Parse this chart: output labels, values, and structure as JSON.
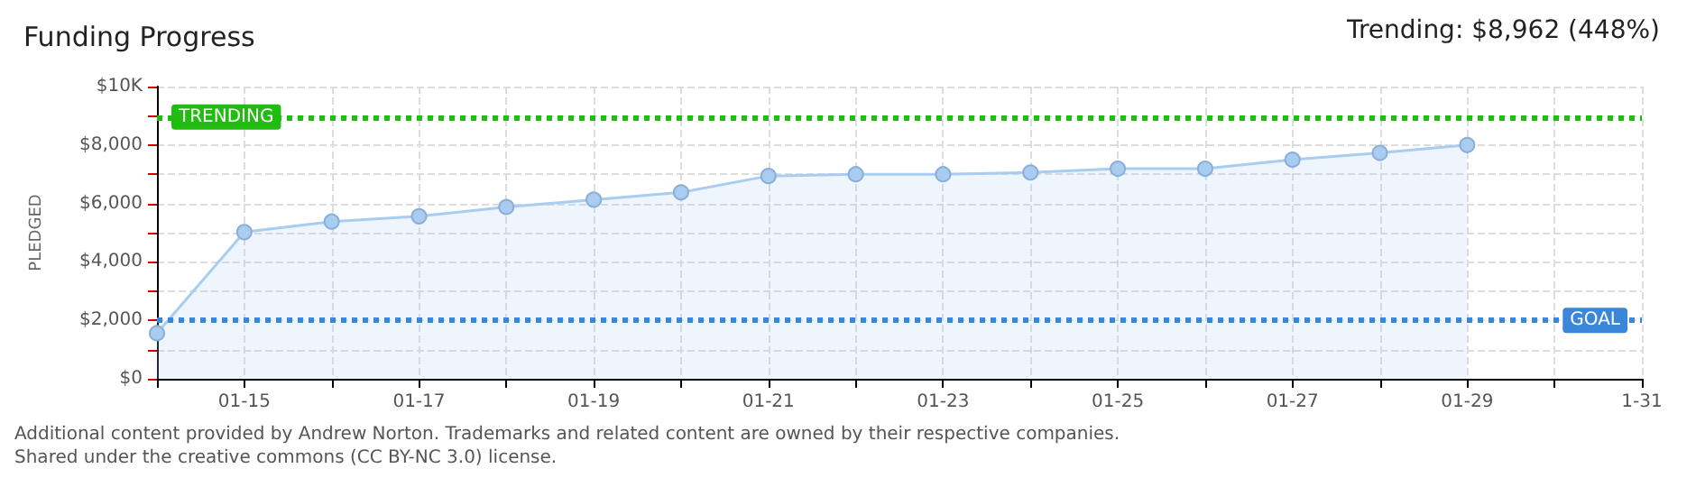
{
  "chart_data": {
    "type": "area",
    "title": "Funding Progress",
    "ylabel": "PLEDGED",
    "annotations": [
      "Trending: $8,962 (448%)",
      "Additional content provided by Andrew Norton. Trademarks and related content are owned by their respective companies.",
      "Shared under the creative commons (CC BY-NC 3.0) license."
    ],
    "x": [
      "--01-14",
      "--01-15",
      "--01-16",
      "--01-17",
      "--01-18",
      "--01-19",
      "--01-20",
      "--01-21",
      "--01-22",
      "--01-23",
      "--01-24",
      "--01-25",
      "--01-26",
      "--01-27",
      "--01-28",
      "--01-29"
    ],
    "series": [
      {
        "color": "#a8cdf0",
        "values": [
          1560,
          5020,
          5380,
          5560,
          5880,
          6130,
          6380,
          6940,
          7000,
          7000,
          7060,
          7190,
          7190,
          7500,
          7730,
          8000
        ]
      }
    ],
    "xlim": [
      "--01-14",
      "--01-31"
    ],
    "xticks": [
      {
        "value": "--01-14",
        "label": null
      },
      {
        "value": "--01-15",
        "label": "01-15"
      },
      {
        "value": "--01-16",
        "label": null
      },
      {
        "value": "--01-17",
        "label": "01-17"
      },
      {
        "value": "--01-18",
        "label": null
      },
      {
        "value": "--01-19",
        "label": "01-19"
      },
      {
        "value": "--01-20",
        "label": null
      },
      {
        "value": "--01-21",
        "label": "01-21"
      },
      {
        "value": "--01-22",
        "label": null
      },
      {
        "value": "--01-23",
        "label": "01-23"
      },
      {
        "value": "--01-24",
        "label": null
      },
      {
        "value": "--01-25",
        "label": "01-25"
      },
      {
        "value": "--01-26",
        "label": null
      },
      {
        "value": "--01-27",
        "label": "01-27"
      },
      {
        "value": "--01-28",
        "label": null
      },
      {
        "value": "--01-29",
        "label": "01-29"
      },
      {
        "value": "--01-30",
        "label": null
      },
      {
        "value": "--01-31",
        "label": "1-31"
      }
    ],
    "ylim": [
      0,
      10000
    ],
    "yticks": [
      {
        "value": 0,
        "label": "$0"
      },
      {
        "value": 1000,
        "label": null
      },
      {
        "value": 2000,
        "label": "$2,000"
      },
      {
        "value": 3000,
        "label": null
      },
      {
        "value": 4000,
        "label": "$4,000"
      },
      {
        "value": 5000,
        "label": null
      },
      {
        "value": 6000,
        "label": "$6,000"
      },
      {
        "value": 7000,
        "label": null
      },
      {
        "value": 8000,
        "label": "$8,000"
      },
      {
        "value": 9000,
        "label": null
      },
      {
        "value": 10000,
        "label": "$10K"
      }
    ],
    "ref_lines": [
      {
        "axis": "y",
        "value": 8962,
        "label": "TRENDING",
        "color": "#22bb11",
        "line_style": "dotted"
      },
      {
        "axis": "y",
        "value": 2000,
        "label": "GOAL",
        "color": "#3a86d8",
        "line_style": "dotted"
      }
    ],
    "grid": true,
    "marker": "circle",
    "line_style": "solid"
  }
}
